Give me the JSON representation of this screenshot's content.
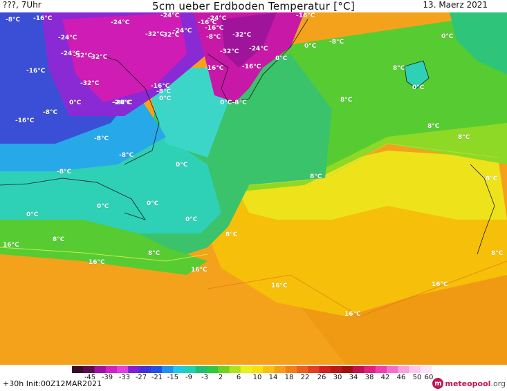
{
  "header": {
    "run_label": "???, 7Uhr",
    "title": "5cm ueber Erdboden Temperatur [°C]",
    "date": "13. Maerz 2021"
  },
  "map": {
    "labels": [
      {
        "text": "-8°C",
        "kind": "cold"
      },
      {
        "text": "-16°C",
        "kind": "cold"
      },
      {
        "text": "-24°C",
        "kind": "cold"
      },
      {
        "text": "-32°C",
        "kind": "cold"
      },
      {
        "text": "-16°C",
        "kind": "cold"
      },
      {
        "text": "-24°C",
        "kind": "cold"
      },
      {
        "text": "-32°C",
        "kind": "cold"
      },
      {
        "text": "-24°C",
        "kind": "cold"
      },
      {
        "text": "-16°C",
        "kind": "cold"
      },
      {
        "text": "-32°C",
        "kind": "cold"
      },
      {
        "text": "-24°C",
        "kind": "cold"
      },
      {
        "text": "-16°C",
        "kind": "cold"
      },
      {
        "text": "-24°C",
        "kind": "cold"
      },
      {
        "text": "-32°C",
        "kind": "cold"
      },
      {
        "text": "-24°C",
        "kind": "cold"
      },
      {
        "text": "-8°C",
        "kind": "cold"
      },
      {
        "text": "-32°C",
        "kind": "cold"
      },
      {
        "text": "-16°C",
        "kind": "cold"
      },
      {
        "text": "-32°C",
        "kind": "cold"
      },
      {
        "text": "-24°C",
        "kind": "cold"
      },
      {
        "text": "-16°C",
        "kind": "cold"
      },
      {
        "text": "-32°C",
        "kind": "cold"
      },
      {
        "text": "-8°C",
        "kind": "cold"
      },
      {
        "text": "0°C",
        "kind": "zero"
      },
      {
        "text": "-8°C",
        "kind": "cold"
      },
      {
        "text": "0°C",
        "kind": "zero"
      },
      {
        "text": "-24°C",
        "kind": "cold"
      },
      {
        "text": "-16°C",
        "kind": "cold"
      },
      {
        "text": "-24°C",
        "kind": "cold"
      },
      {
        "text": "-8°C",
        "kind": "cold"
      },
      {
        "text": "0°C",
        "kind": "zero"
      },
      {
        "text": "0°C-8°C",
        "kind": "zero"
      },
      {
        "text": "-16°C",
        "kind": "cold"
      },
      {
        "text": "-8°C",
        "kind": "cold"
      },
      {
        "text": "-8°C",
        "kind": "cold"
      },
      {
        "text": "0°C",
        "kind": "zero"
      },
      {
        "text": "0°C",
        "kind": "zero"
      },
      {
        "text": "0°C",
        "kind": "zero"
      },
      {
        "text": "0°C",
        "kind": "zero"
      },
      {
        "text": "0°C",
        "kind": "zero"
      },
      {
        "text": "-16°C",
        "kind": "cold"
      },
      {
        "text": "0°C",
        "kind": "zero"
      },
      {
        "text": "-8°C",
        "kind": "cold"
      },
      {
        "text": "0°C",
        "kind": "zero"
      },
      {
        "text": "8°C",
        "kind": "warm"
      },
      {
        "text": "8°C",
        "kind": "warm"
      },
      {
        "text": "8°C",
        "kind": "warm"
      },
      {
        "text": "8°C",
        "kind": "warm"
      },
      {
        "text": "8°C",
        "kind": "warm"
      },
      {
        "text": "8°C",
        "kind": "warm"
      },
      {
        "text": "8°C",
        "kind": "warm"
      },
      {
        "text": "8°C",
        "kind": "warm"
      },
      {
        "text": "8°C",
        "kind": "warm"
      },
      {
        "text": "0°C",
        "kind": "zero"
      },
      {
        "text": "8°C",
        "kind": "warm"
      },
      {
        "text": "16°C",
        "kind": "hot"
      },
      {
        "text": "16°C",
        "kind": "hot"
      },
      {
        "text": "16°C",
        "kind": "hot"
      },
      {
        "text": "16°C",
        "kind": "hot"
      },
      {
        "text": "16°C",
        "kind": "hot"
      },
      {
        "text": "16°C",
        "kind": "hot"
      }
    ]
  },
  "colorbar": {
    "ticks": [
      "-45",
      "-39",
      "-33",
      "-27",
      "-21",
      "-15",
      "-9",
      "-3",
      "2",
      "6",
      "10",
      "14",
      "18",
      "22",
      "26",
      "30",
      "34",
      "38",
      "42",
      "46",
      "50",
      "60"
    ]
  },
  "footer": {
    "forecast": "+30h",
    "init": "Init:00Z12MAR2021",
    "logo_text": "meteopool",
    "logo_suffix": ".org"
  },
  "colors": {
    "ocean_warm": "#f0a030",
    "ocean_mid": "#f5c800",
    "land_green": "#5ccf30",
    "cold_magenta": "#d01cb0",
    "cold_blue": "#3a3ad0",
    "cyan": "#30d0c0",
    "brand": "#c3154b"
  }
}
